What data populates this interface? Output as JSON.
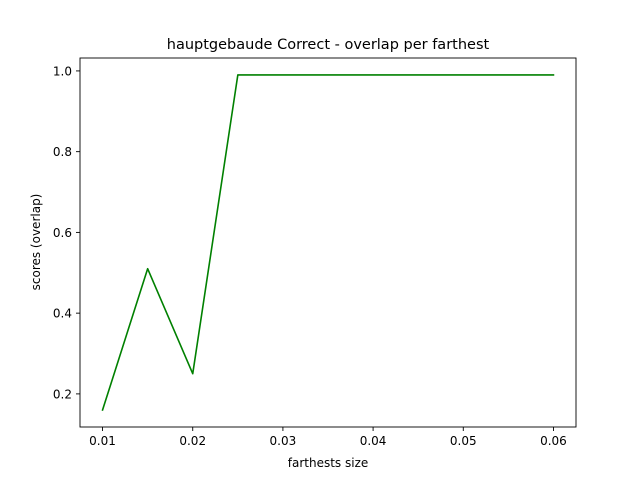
{
  "chart_data": {
    "type": "line",
    "title": "hauptgebaude Correct - overlap per farthest",
    "xlabel": "farthests size",
    "ylabel": "scores (overlap)",
    "xlim": [
      0.0075,
      0.0625
    ],
    "ylim": [
      0.118,
      1.032
    ],
    "x_ticks": [
      0.01,
      0.02,
      0.03,
      0.04,
      0.05,
      0.06
    ],
    "x_tick_labels": [
      "0.01",
      "0.02",
      "0.03",
      "0.04",
      "0.05",
      "0.06"
    ],
    "y_ticks": [
      0.2,
      0.4,
      0.6,
      0.8,
      1.0
    ],
    "y_tick_labels": [
      "0.2",
      "0.4",
      "0.6",
      "0.8",
      "1.0"
    ],
    "grid": false,
    "legend": "none",
    "series": [
      {
        "color": "#008000",
        "x": [
          0.01,
          0.015,
          0.02,
          0.025,
          0.03,
          0.035,
          0.04,
          0.045,
          0.05,
          0.055,
          0.06
        ],
        "y": [
          0.16,
          0.51,
          0.25,
          0.99,
          0.99,
          0.99,
          0.99,
          0.99,
          0.99,
          0.99,
          0.99
        ]
      }
    ]
  }
}
